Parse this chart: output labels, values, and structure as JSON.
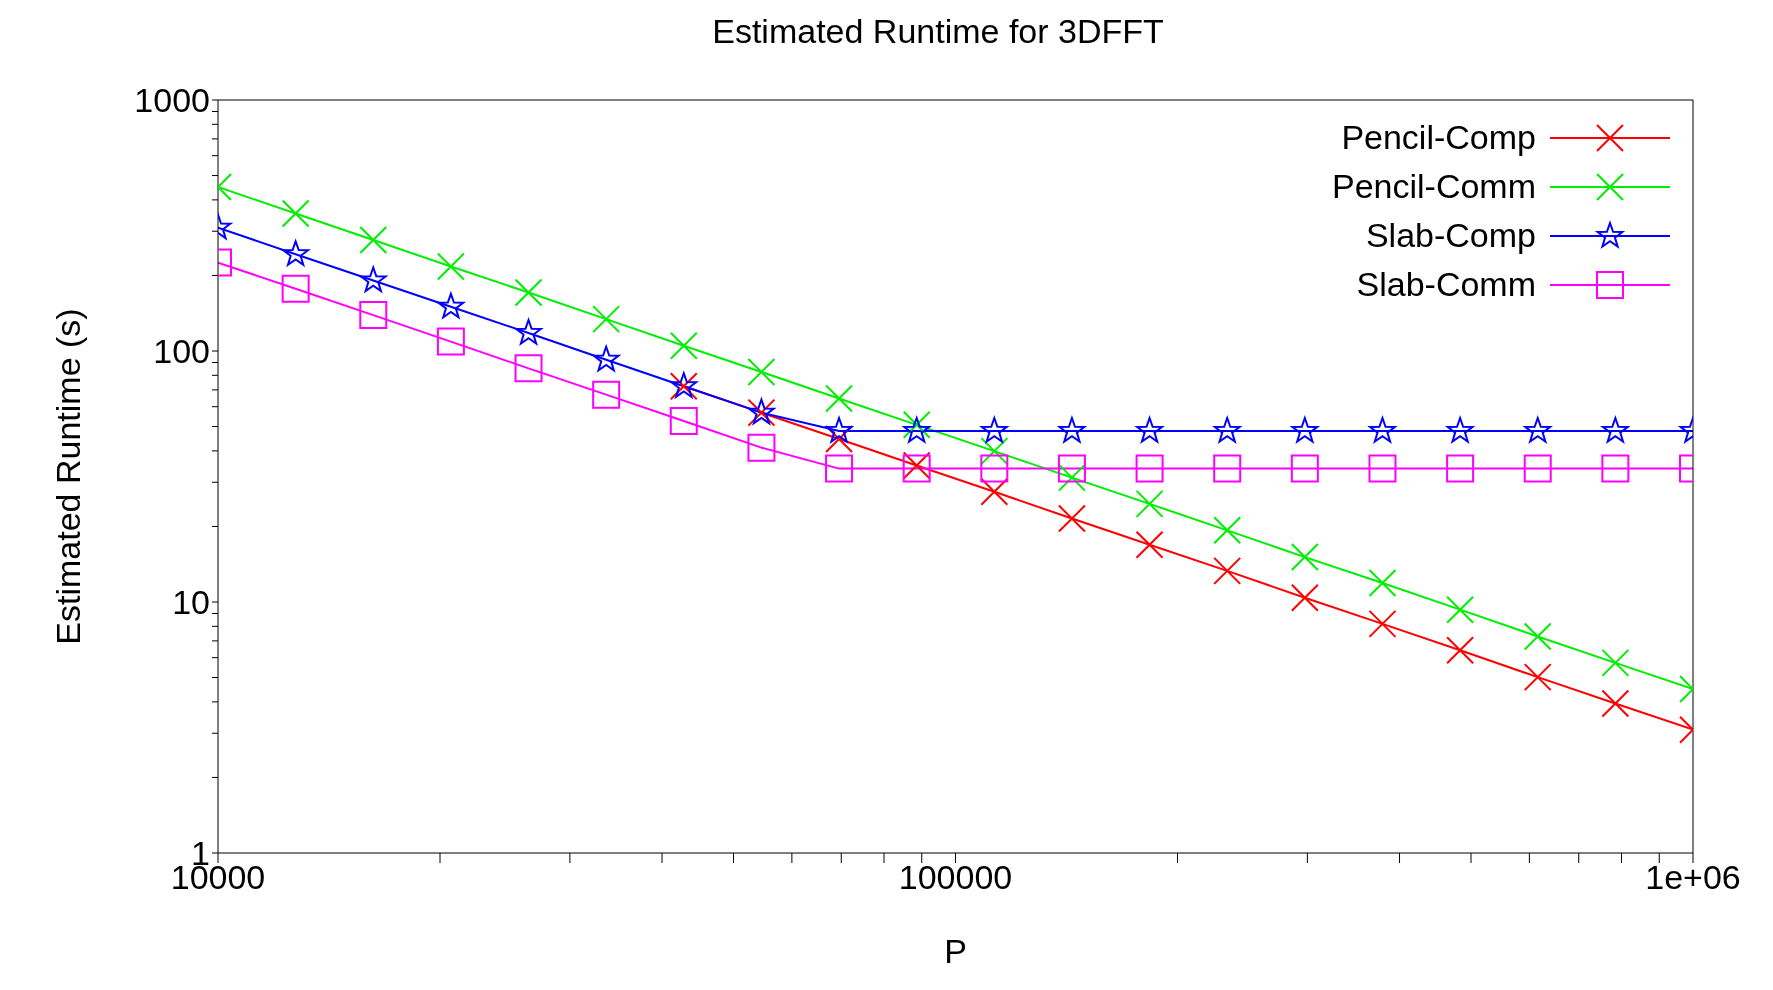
{
  "chart_data": {
    "type": "line",
    "title": "Estimated Runtime for 3DFFT",
    "xlabel": "P",
    "ylabel": "Estimated Runtime (s)",
    "log": "xy",
    "grid": false,
    "legend": "top right",
    "x": [
      10000,
      12743,
      16238,
      20691,
      26367,
      33598,
      42813,
      54556,
      69519,
      88587,
      112884,
      143845,
      183298,
      233572,
      297635,
      379269,
      483293,
      615848,
      784760,
      1000000
    ],
    "xlim": [
      10000,
      1000000
    ],
    "xticks": [
      10000,
      {
        "value": 20000,
        "label": null
      },
      {
        "value": 30000,
        "label": null
      },
      {
        "value": 40000,
        "label": null
      },
      {
        "value": 50000,
        "label": null
      },
      {
        "value": 60000,
        "label": null
      },
      {
        "value": 70000,
        "label": null
      },
      {
        "value": 80000,
        "label": null
      },
      {
        "value": 90000,
        "label": null
      },
      100000,
      {
        "value": 200000,
        "label": null
      },
      {
        "value": 300000,
        "label": null
      },
      {
        "value": 400000,
        "label": null
      },
      {
        "value": 500000,
        "label": null
      },
      {
        "value": 600000,
        "label": null
      },
      {
        "value": 700000,
        "label": null
      },
      {
        "value": 800000,
        "label": null
      },
      {
        "value": 900000,
        "label": null
      },
      {
        "value": 1000000,
        "label": "1e+06"
      }
    ],
    "ylim": [
      1,
      1000
    ],
    "yticks": [
      1,
      {
        "value": 2,
        "label": null
      },
      {
        "value": 3,
        "label": null
      },
      {
        "value": 4,
        "label": null
      },
      {
        "value": 5,
        "label": null
      },
      {
        "value": 6,
        "label": null
      },
      {
        "value": 7,
        "label": null
      },
      {
        "value": 8,
        "label": null
      },
      {
        "value": 9,
        "label": null
      },
      10,
      {
        "value": 20,
        "label": null
      },
      {
        "value": 30,
        "label": null
      },
      {
        "value": 40,
        "label": null
      },
      {
        "value": 50,
        "label": null
      },
      {
        "value": 60,
        "label": null
      },
      {
        "value": 70,
        "label": null
      },
      {
        "value": 80,
        "label": null
      },
      {
        "value": 90,
        "label": null
      },
      100,
      {
        "value": 200,
        "label": null
      },
      {
        "value": 300,
        "label": null
      },
      {
        "value": 400,
        "label": null
      },
      {
        "value": 500,
        "label": null
      },
      {
        "value": 600,
        "label": null
      },
      {
        "value": 700,
        "label": null
      },
      {
        "value": 800,
        "label": null
      },
      {
        "value": 900,
        "label": null
      },
      1000
    ],
    "series": [
      {
        "name": "Pencil-Comp",
        "color": "#ff0000",
        "marker": "cross",
        "values": [
          null,
          null,
          null,
          null,
          null,
          null,
          72.4,
          56.8,
          44.6,
          35.0,
          27.5,
          21.5,
          16.9,
          13.3,
          10.4,
          8.18,
          6.42,
          5.02,
          3.94,
          3.1
        ]
      },
      {
        "name": "Pencil-Comm",
        "color": "#00ee00",
        "marker": "cross",
        "values": [
          450,
          353,
          277,
          217,
          171,
          134,
          105,
          82.5,
          64.7,
          50.8,
          39.9,
          31.3,
          24.6,
          19.3,
          15.1,
          11.9,
          9.32,
          7.29,
          5.72,
          4.5
        ]
      },
      {
        "name": "Slab-Comp",
        "color": "#0000ff",
        "marker": "star",
        "values": [
          310,
          243,
          191,
          150,
          118,
          92.3,
          72.4,
          56.8,
          48,
          48,
          48,
          48,
          48,
          48,
          48,
          48,
          48,
          48,
          48,
          48
        ]
      },
      {
        "name": "Slab-Comm",
        "color": "#ff00ff",
        "marker": "square",
        "values": [
          225,
          177,
          139,
          109,
          85.3,
          67.0,
          52.6,
          41.2,
          34,
          34,
          34,
          34,
          34,
          34,
          34,
          34,
          34,
          34,
          34,
          34
        ]
      }
    ]
  }
}
